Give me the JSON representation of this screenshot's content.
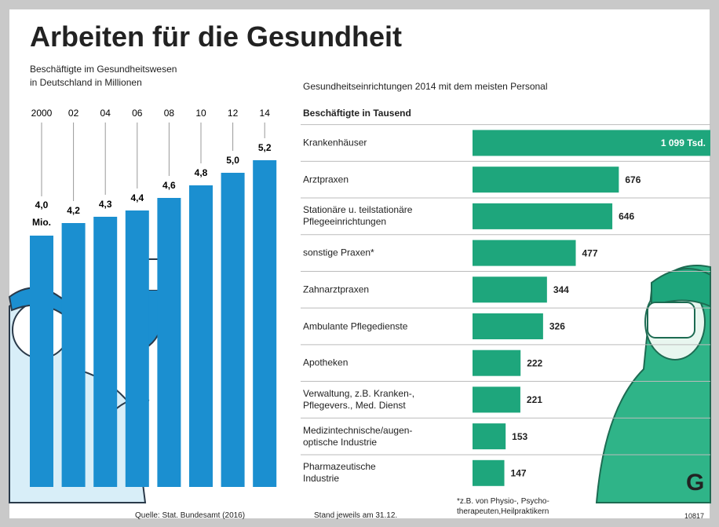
{
  "header": {
    "title": "Arbeiten für die Gesundheit"
  },
  "chart_data": [
    {
      "type": "bar",
      "subtitle": "Beschäftigte im Gesundheitswesen\nin Deutschland in Millionen",
      "categories": [
        "2000",
        "02",
        "04",
        "06",
        "08",
        "10",
        "12",
        "14"
      ],
      "values": [
        4.0,
        4.2,
        4.3,
        4.4,
        4.6,
        4.8,
        5.0,
        5.2
      ],
      "value_labels": [
        "4,0",
        "4,2",
        "4,3",
        "4,4",
        "4,6",
        "4,8",
        "5,0",
        "5,2"
      ],
      "annotation": "Mio.",
      "color": "#1b8fd0"
    },
    {
      "type": "hbar",
      "subtitle": "Gesundheitseinrichtungen 2014 mit dem meisten Personal",
      "axis_label": "Beschäftigte in Tausend",
      "categories": [
        "Krankenhäuser",
        "Arztpraxen",
        "Stationäre u. teilstationäre\nPflegeeinrichtungen",
        "sonstige Praxen*",
        "Zahnarztpraxen",
        "Ambulante Pflegedienste",
        "Apotheken",
        "Verwaltung, z.B. Kranken-,\nPflegevers., Med. Dienst",
        "Medizintechnische/augen-\noptische Industrie",
        "Pharmazeutische\nIndustrie"
      ],
      "values": [
        1099,
        676,
        646,
        477,
        344,
        326,
        222,
        221,
        153,
        147
      ],
      "value_labels": [
        "1 099 Tsd.",
        "676",
        "646",
        "477",
        "344",
        "326",
        "222",
        "221",
        "153",
        "147"
      ],
      "color": "#1ea67c"
    }
  ],
  "footer": {
    "source": "Quelle: Stat. Bundesamt (2016)",
    "date": "Stand jeweils am 31.12.",
    "note": "*z.B. von Physio-, Psycho-\ntherapeuten,Heilpraktikern",
    "logo": "G",
    "id": "10817"
  }
}
